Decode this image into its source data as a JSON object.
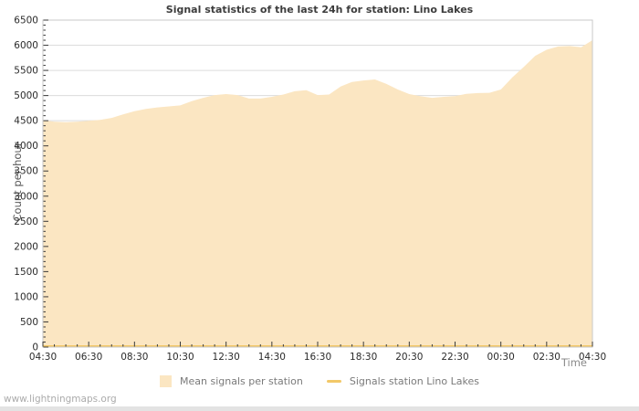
{
  "page": {
    "watermark": "www.lightningmaps.org"
  },
  "chart_data": {
    "type": "area",
    "title": "Signal statistics of the last 24h for station: Lino Lakes",
    "xlabel": "Time",
    "ylabel": "Count per hour",
    "ylim": [
      0,
      6500
    ],
    "y_major_step": 500,
    "y_minor_step": 100,
    "grid": "horizontal-only",
    "legend_position": "bottom-center",
    "x_tick_labels": [
      "04:30",
      "06:30",
      "08:30",
      "10:30",
      "12:30",
      "14:30",
      "16:30",
      "18:30",
      "20:30",
      "22:30",
      "00:30",
      "02:30",
      "04:30"
    ],
    "x_minor_ticks_per_major": 4,
    "x": [
      "04:30",
      "05:00",
      "05:30",
      "06:00",
      "06:30",
      "07:00",
      "07:30",
      "08:00",
      "08:30",
      "09:00",
      "09:30",
      "10:00",
      "10:30",
      "11:00",
      "11:30",
      "12:00",
      "12:30",
      "13:00",
      "13:30",
      "14:00",
      "14:30",
      "15:00",
      "15:30",
      "16:00",
      "16:30",
      "17:00",
      "17:30",
      "18:00",
      "18:30",
      "19:00",
      "19:30",
      "20:00",
      "20:30",
      "21:00",
      "21:30",
      "22:00",
      "22:30",
      "23:00",
      "23:30",
      "00:00",
      "00:30",
      "01:00",
      "01:30",
      "02:00",
      "02:30",
      "03:00",
      "03:30",
      "04:00",
      "04:30"
    ],
    "series": [
      {
        "name": "Mean signals per station",
        "type": "area",
        "color": "#fbe6c2",
        "values": [
          4510,
          4480,
          4470,
          4480,
          4500,
          4515,
          4555,
          4625,
          4690,
          4735,
          4765,
          4785,
          4805,
          4890,
          4955,
          5010,
          5030,
          5010,
          4940,
          4940,
          4975,
          5020,
          5085,
          5105,
          5010,
          5020,
          5180,
          5270,
          5300,
          5320,
          5230,
          5120,
          5030,
          4985,
          4955,
          4975,
          4990,
          5035,
          5050,
          5055,
          5120,
          5360,
          5570,
          5790,
          5910,
          5975,
          5985,
          5960,
          6100
        ]
      },
      {
        "name": "Signals station Lino Lakes",
        "type": "line",
        "color": "#f2c868",
        "values": [
          0,
          0,
          0,
          0,
          0,
          0,
          0,
          0,
          0,
          0,
          0,
          0,
          0,
          0,
          0,
          0,
          0,
          0,
          0,
          0,
          0,
          0,
          0,
          0,
          0,
          0,
          0,
          0,
          0,
          0,
          0,
          0,
          0,
          0,
          0,
          0,
          0,
          0,
          0,
          0,
          0,
          0,
          0,
          0,
          0,
          0,
          0,
          0,
          0
        ]
      }
    ],
    "colors": {
      "grid": "#dcdcdc",
      "plot_border": "#c9c9c9",
      "tick": "#3a3a3a",
      "tick_label": "#2b2b2b",
      "title": "#3c3c3c",
      "axis_title": "#5a5a5a",
      "legend_text": "#7a7a7a",
      "watermark": "#ababab"
    }
  }
}
